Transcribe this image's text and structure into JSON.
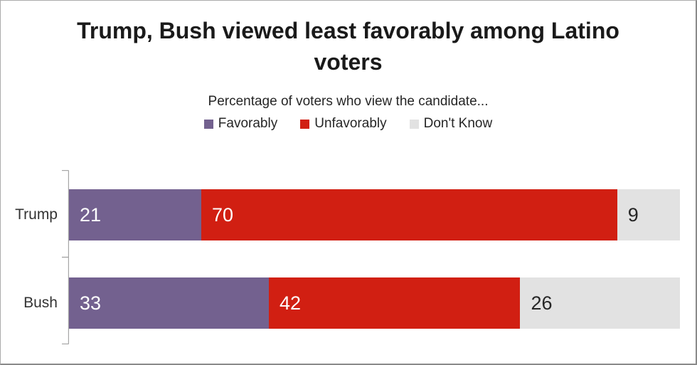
{
  "page": {
    "background": "#ffffff",
    "border_color": "#8a8a8a"
  },
  "chart_data": {
    "type": "bar",
    "variant": "horizontal-stacked",
    "title": "Trump, Bush viewed least favorably among Latino voters",
    "subtitle": "Percentage of voters who view the candidate...",
    "categories": [
      "Trump",
      "Bush"
    ],
    "series": [
      {
        "name": "Favorably",
        "color": "#73618F",
        "label_color": "#ffffff",
        "values": [
          21,
          33
        ]
      },
      {
        "name": "Unfavorably",
        "color": "#D11F12",
        "label_color": "#ffffff",
        "values": [
          70,
          42
        ]
      },
      {
        "name": "Don't Know",
        "color": "#E2E2E2",
        "label_color": "#262626",
        "values": [
          9,
          26
        ]
      }
    ],
    "xlim": [
      0,
      100
    ],
    "value_labels": "inside-start",
    "legend_position": "top-center",
    "grid": false,
    "axis_color": "#a6a6a6",
    "value_label_colors": {
      "on_dark": "#ffffff",
      "on_light": "#262626"
    }
  }
}
